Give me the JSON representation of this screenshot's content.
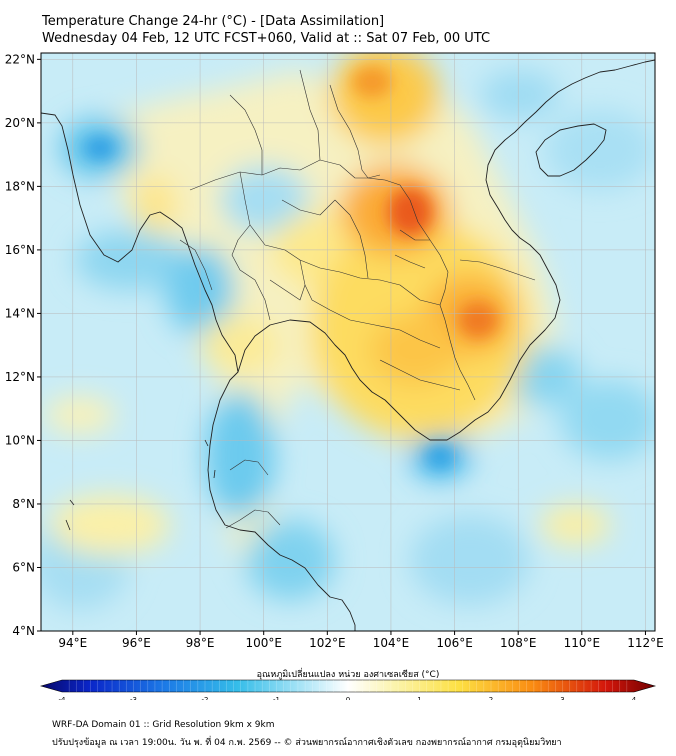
{
  "header": {
    "title": "Temperature Change 24-hr (°C) - [Data Assimilation]",
    "subtitle": "Wednesday 04 Feb, 12 UTC FCST+060, Valid at :: Sat 07 Feb, 00 UTC"
  },
  "map": {
    "lat_labels": [
      "22°N",
      "20°N",
      "18°N",
      "16°N",
      "14°N",
      "12°N",
      "10°N",
      "8°N",
      "6°N",
      "4°N"
    ],
    "lon_labels": [
      "94°E",
      "96°E",
      "98°E",
      "100°E",
      "102°E",
      "104°E",
      "106°E",
      "108°E",
      "110°E",
      "112°E"
    ],
    "extent": {
      "lon": [
        93,
        112.3
      ],
      "lat": [
        4,
        22.2
      ]
    }
  },
  "colorbar": {
    "title": "อุณหภูมิเปลี่ยนแปลง หน่วย องศาเซลเซียส (°C)",
    "ticks": [
      "-4",
      "-3",
      "-2",
      "-1",
      "0",
      "1",
      "2",
      "3",
      "4"
    ],
    "range": [
      -4,
      4
    ]
  },
  "footer": {
    "line1": "WRF-DA Domain 01 :: Grid Resolution 9km x 9km",
    "line2": "ปรับปรุงข้อมูล ณ เวลา 19:00น. วัน พ. ที่ 04 ก.พ. 2569 -- © ส่วนพยากรณ์อากาศเชิงตัวเลข กองพยากรณ์อากาศ กรมอุตุนิยมวิทยา"
  },
  "colors": {
    "ocean_base": "#c8ecf7",
    "land_base": "#f4f0c6",
    "coast": "#222222",
    "border": "#333333",
    "grid": "#b9b9b9"
  }
}
